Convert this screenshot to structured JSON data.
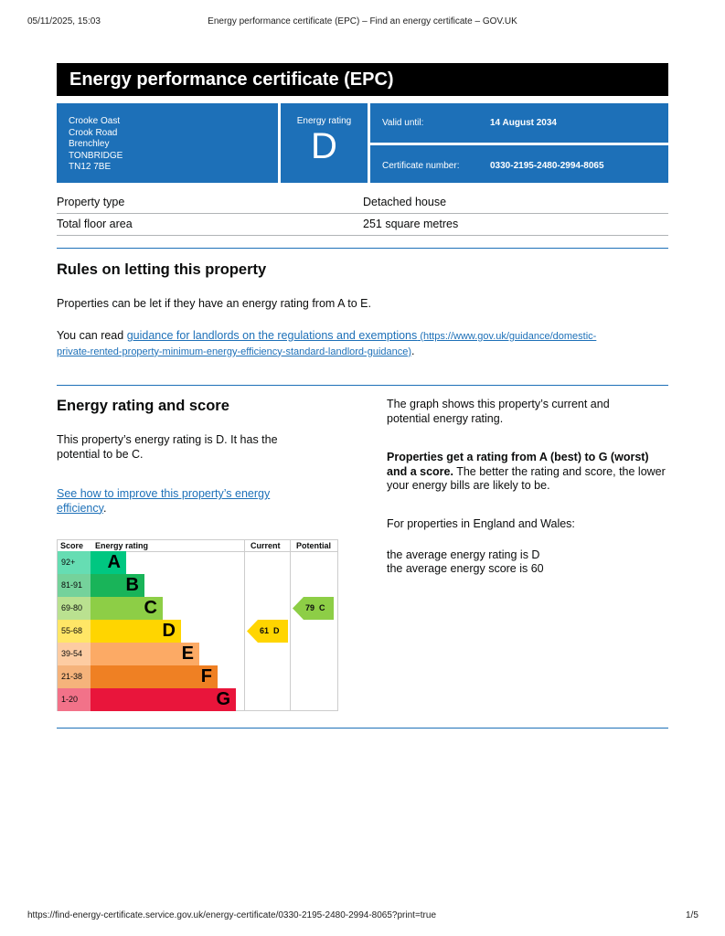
{
  "print_header": {
    "datetime": "05/11/2025, 15:03",
    "title": "Energy performance certificate (EPC) – Find an energy certificate – GOV.UK"
  },
  "title": "Energy performance certificate (EPC)",
  "address": [
    "Crooke Oast",
    "Crook Road",
    "Brenchley",
    "TONBRIDGE",
    "TN12 7BE"
  ],
  "energy_rating": {
    "label": "Energy rating",
    "value": "D"
  },
  "valid_until": {
    "label": "Valid until:",
    "value": "14 August 2034"
  },
  "certificate_number": {
    "label": "Certificate number:",
    "value": "0330-2195-2480-2994-8065"
  },
  "property": [
    {
      "label": "Property type",
      "value": "Detached house"
    },
    {
      "label": "Total floor area",
      "value": "251 square metres"
    }
  ],
  "rules": {
    "heading": "Rules on letting this property",
    "text": "Properties can be let if they have an energy rating from A to E.",
    "read_prefix": "You can read ",
    "link_text": "guidance for landlords on the regulations and exemptions",
    "link_url_line1": " (https://www.gov.uk/guidance/domestic-",
    "link_url_line2": "private-rented-property-minimum-energy-efficiency-standard-landlord-guidance)",
    "suffix": "."
  },
  "score": {
    "heading": "Energy rating and score",
    "text": "This property’s energy rating is D. It has the potential to be C.",
    "link": "See how to improve this property’s energy efficiency",
    "link_suffix": ".",
    "graph_text": "The graph shows this property’s current and potential energy rating.",
    "bold": "Properties get a rating from A (best) to G (worst) and a score.",
    "rest": " The better the rating and score, the lower your energy bills are likely to be.",
    "england": "For properties in England and Wales:",
    "avg_rating": "the average energy rating is D",
    "avg_score": "the average energy score is 60"
  },
  "chart": {
    "headers": [
      "Score",
      "Energy rating",
      "Current",
      "Potential"
    ],
    "bands": [
      {
        "score": "92+",
        "letter": "A",
        "color": "#00c781"
      },
      {
        "score": "81-91",
        "letter": "B",
        "color": "#19b459"
      },
      {
        "score": "69-80",
        "letter": "C",
        "color": "#8dce46"
      },
      {
        "score": "55-68",
        "letter": "D",
        "color": "#ffd500"
      },
      {
        "score": "39-54",
        "letter": "E",
        "color": "#fcaa65"
      },
      {
        "score": "21-38",
        "letter": "F",
        "color": "#ef8023"
      },
      {
        "score": "1-20",
        "letter": "G",
        "color": "#e9153b"
      }
    ],
    "current": {
      "score": 61,
      "letter": "D",
      "label": "61  D"
    },
    "potential": {
      "score": 79,
      "letter": "C",
      "label": "79  C"
    }
  },
  "footer": {
    "url": "https://find-energy-certificate.service.gov.uk/energy-certificate/0330-2195-2480-2994-8065?print=true",
    "page": "1/5"
  }
}
